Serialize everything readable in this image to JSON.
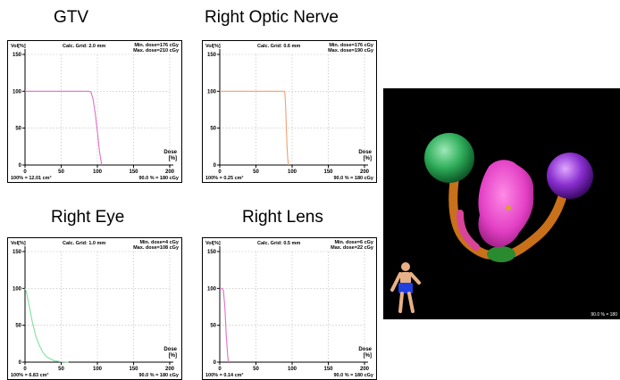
{
  "chart_data": [
    {
      "type": "line",
      "title": "GTV",
      "calc_grid": "Calc. Grid: 2.0 mm",
      "min_dose": "Min. dose=176 cGy",
      "max_dose": "Max. dose=210 cGy",
      "volume_note": "100% = 12.01 cm³",
      "ref_note": "90.0 % = 180 cGy",
      "ylabel": "Vol[%]",
      "xlabel": "Dose",
      "xunit": "[%]",
      "xlim": [
        0,
        200
      ],
      "ylim": [
        0,
        150
      ],
      "xticks": [
        "0",
        "50",
        "100",
        "150",
        "200"
      ],
      "yticks": [
        "0",
        "50",
        "100",
        "150"
      ],
      "grid": true,
      "color": "#e070c8",
      "series": [
        {
          "x": [
            0,
            88,
            91,
            94,
            97,
            100,
            103,
            106
          ],
          "y": [
            100,
            100,
            99,
            90,
            70,
            45,
            18,
            0
          ]
        }
      ]
    },
    {
      "type": "line",
      "title": "Right Optic Nerve",
      "calc_grid": "Calc. Grid: 0.6 mm",
      "min_dose": "Min. dose=176 cGy",
      "max_dose": "Max. dose=190 cGy",
      "volume_note": "100% = 0.25 cm³",
      "ref_note": "90.0 % = 180 cGy",
      "ylabel": "Vol[%]",
      "xlabel": "Dose",
      "xunit": "[%]",
      "xlim": [
        0,
        200
      ],
      "ylim": [
        0,
        150
      ],
      "xticks": [
        "0",
        "50",
        "100",
        "150",
        "200"
      ],
      "yticks": [
        "0",
        "50",
        "100",
        "150"
      ],
      "grid": true,
      "color": "#f0a070",
      "series": [
        {
          "x": [
            0,
            89,
            90,
            91,
            92,
            93,
            94,
            95
          ],
          "y": [
            100,
            100,
            97,
            80,
            50,
            25,
            8,
            0
          ]
        }
      ]
    },
    {
      "type": "line",
      "title": "Right Eye",
      "calc_grid": "Calc. Grid: 1.0 mm",
      "min_dose": "Min. dose=4 cGy",
      "max_dose": "Max. dose=108 cGy",
      "volume_note": "100% = 6.83 cm³",
      "ref_note": "90.0 % = 180 cGy",
      "ylabel": "Vol[%]",
      "xlabel": "Dose",
      "xunit": "[%]",
      "xlim": [
        0,
        200
      ],
      "ylim": [
        0,
        150
      ],
      "xticks": [
        "0",
        "50",
        "100",
        "150",
        "200"
      ],
      "yticks": [
        "0",
        "50",
        "100",
        "150"
      ],
      "grid": true,
      "color": "#80e0a0",
      "series": [
        {
          "x": [
            0,
            2,
            5,
            10,
            15,
            20,
            25,
            30,
            40,
            50,
            60
          ],
          "y": [
            100,
            95,
            80,
            55,
            35,
            22,
            13,
            7,
            2,
            0.5,
            0
          ]
        }
      ]
    },
    {
      "type": "line",
      "title": "Right Lens",
      "calc_grid": "Calc. Grid: 0.5 mm",
      "min_dose": "Min. dose=6 cGy",
      "max_dose": "Max. dose=22 cGy",
      "volume_note": "100% = 0.14 cm³",
      "ref_note": "90.0 % = 180 cGy",
      "ylabel": "Vol[%]",
      "xlabel": "Dose",
      "xunit": "[%]",
      "xlim": [
        0,
        200
      ],
      "ylim": [
        0,
        150
      ],
      "xticks": [
        "0",
        "50",
        "100",
        "150",
        "200"
      ],
      "yticks": [
        "0",
        "50",
        "100",
        "150"
      ],
      "grid": true,
      "color": "#e070c8",
      "series": [
        {
          "x": [
            0,
            3,
            5,
            7,
            9,
            11,
            12
          ],
          "y": [
            100,
            100,
            97,
            75,
            35,
            8,
            0
          ]
        }
      ]
    }
  ],
  "viewer": {
    "status_text": "90.0 % = 180",
    "structures": [
      {
        "name": "Right Eye",
        "color": "#2fae5a"
      },
      {
        "name": "Left Eye",
        "color": "#8a2fd0"
      },
      {
        "name": "GTV",
        "color": "#e23fc4"
      },
      {
        "name": "Optic Nerve",
        "color": "#c8701a"
      },
      {
        "name": "Chiasm",
        "color": "#2a8a30"
      }
    ],
    "figure": {
      "skin": "#e8b088",
      "shorts": "#2040e0"
    }
  }
}
